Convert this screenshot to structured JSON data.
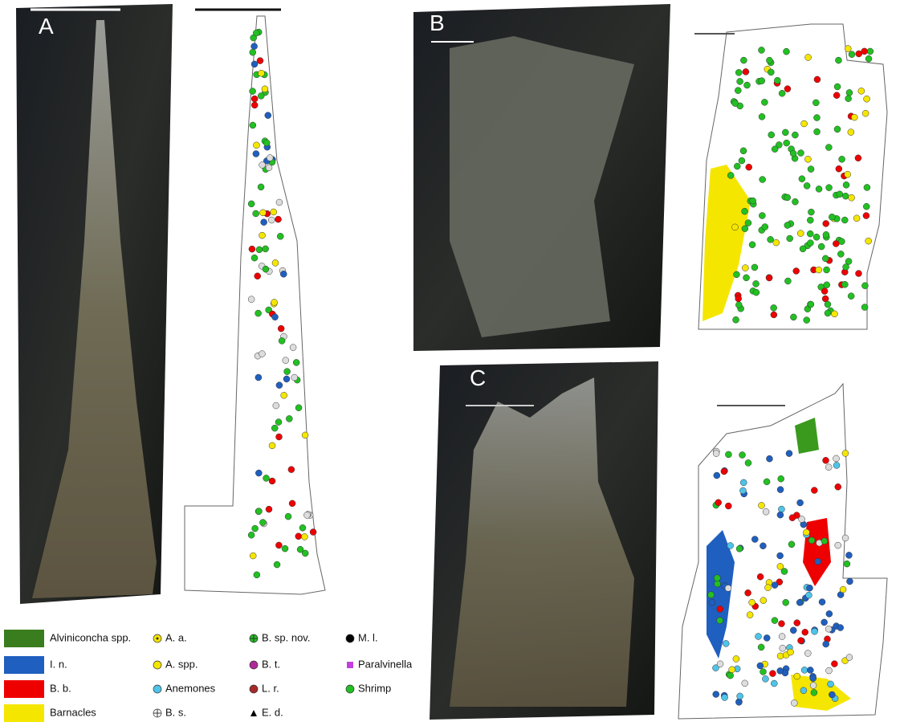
{
  "panels": [
    {
      "label": "A"
    },
    {
      "label": "B"
    },
    {
      "label": "C"
    }
  ],
  "legend": {
    "items": [
      {
        "label": "Alviniconcha spp."
      },
      {
        "label": "I. n."
      },
      {
        "label": "B. b."
      },
      {
        "label": "Barnacles"
      },
      {
        "label": "A. a."
      },
      {
        "label": "A. spp."
      },
      {
        "label": "Anemones"
      },
      {
        "label": "B. s."
      },
      {
        "label": "B. sp. nov."
      },
      {
        "label": "B. t."
      },
      {
        "label": "L. r."
      },
      {
        "label": "E. d."
      },
      {
        "label": "M. l."
      },
      {
        "label": "Paralvinella"
      },
      {
        "label": "Shrimp"
      }
    ]
  }
}
